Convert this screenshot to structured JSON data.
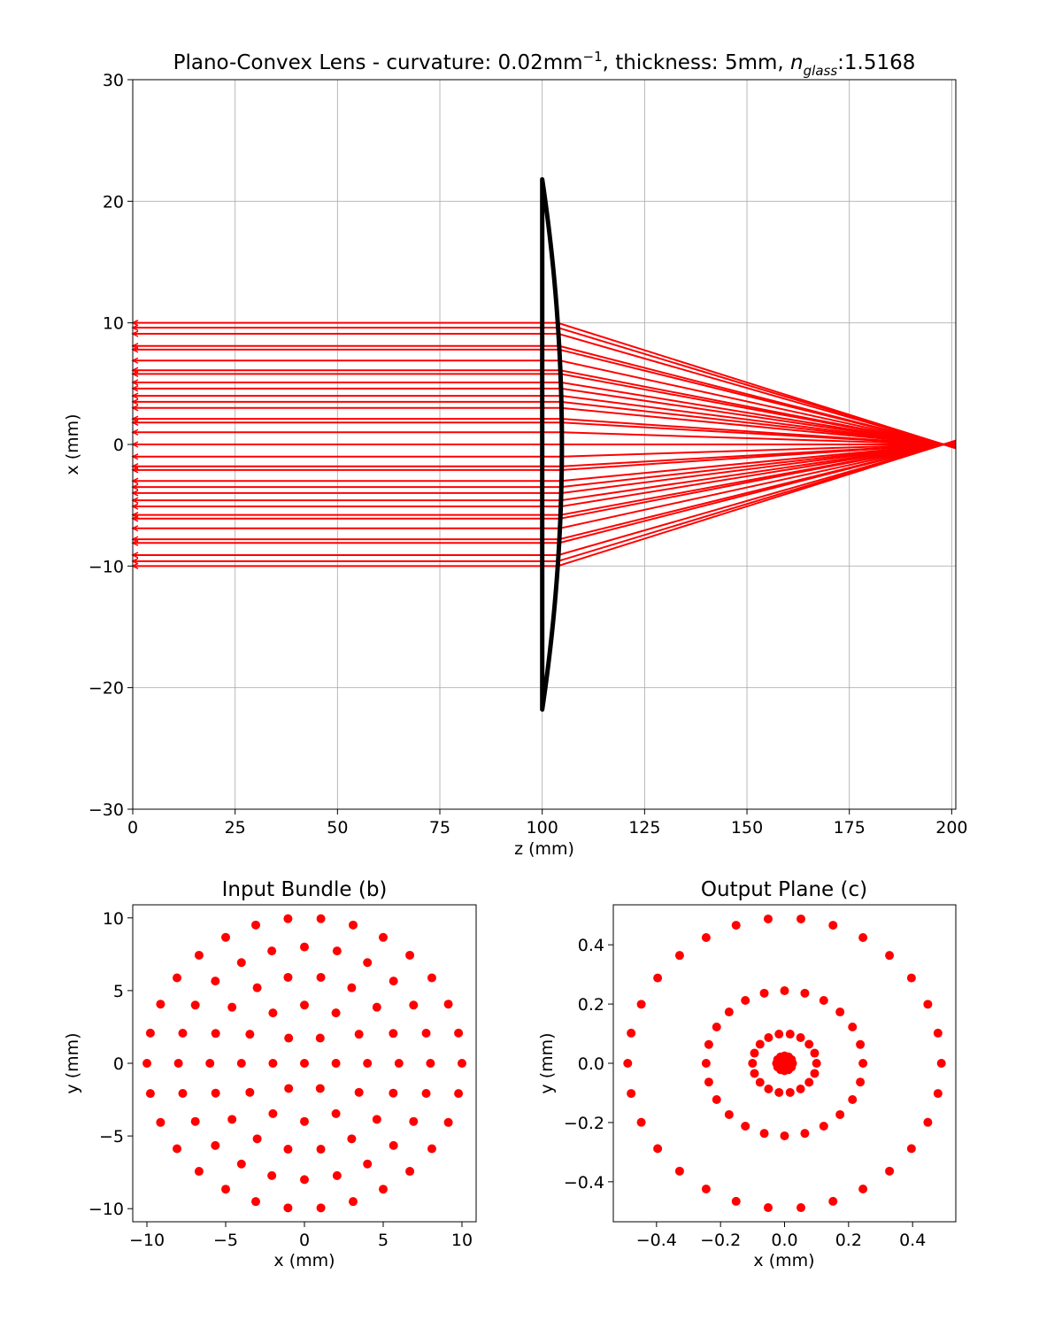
{
  "chart_data": [
    {
      "id": "ray-trace",
      "type": "line",
      "title_parts": {
        "prefix": "Plano-Convex Lens - curvature: 0.02mm",
        "sup": "−1",
        "middle": ", thickness: 5mm, ",
        "n": "n",
        "sub": "glass",
        "suffix": ":1.5168"
      },
      "xlabel": "z (mm)",
      "ylabel": "x (mm)",
      "xlim": [
        0,
        201
      ],
      "ylim": [
        -30,
        30
      ],
      "xticks": [
        0,
        25,
        50,
        75,
        100,
        125,
        150,
        175,
        200
      ],
      "yticks": [
        -30,
        -20,
        -10,
        0,
        10,
        20,
        30
      ],
      "xtick_labels": [
        "0",
        "25",
        "50",
        "75",
        "100",
        "125",
        "150",
        "175",
        "200"
      ],
      "ytick_labels": [
        "−30",
        "−20",
        "−10",
        "0",
        "10",
        "20",
        "30"
      ],
      "grid": true,
      "ray_color": "#ff0000",
      "lens_color": "#000000",
      "lens": {
        "flat_surface_z": 100,
        "vertex_z": 104.8,
        "aperture_half_height": 21.8
      },
      "ray_heights": [
        10,
        9.6,
        9.1,
        8.1,
        7.8,
        6.9,
        6.1,
        5.8,
        5.1,
        4.6,
        4.0,
        3.5,
        3.0,
        2.1,
        1.8,
        1.0,
        0,
        -1.0,
        -1.8,
        -2.1,
        -3.0,
        -3.5,
        -4.0,
        -4.6,
        -5.1,
        -5.8,
        -6.1,
        -6.9,
        -7.8,
        -8.1,
        -9.1,
        -9.6,
        -10
      ],
      "output_z": 201,
      "focal_z": 198
    },
    {
      "id": "input-bundle",
      "type": "scatter",
      "title": "Input Bundle (b)",
      "xlabel": "x (mm)",
      "ylabel": "y (mm)",
      "xlim": [
        -10.9,
        10.9
      ],
      "ylim": [
        -10.9,
        10.9
      ],
      "xticks": [
        -10,
        -5,
        0,
        5,
        10
      ],
      "yticks": [
        -10,
        -5,
        0,
        5,
        10
      ],
      "xtick_labels": [
        "−10",
        "−5",
        "0",
        "5",
        "10"
      ],
      "ytick_labels": [
        "−10",
        "−5",
        "0",
        "5",
        "10"
      ],
      "color": "#ff0000",
      "rings": [
        {
          "radius": 0,
          "count": 1,
          "offset_deg": 0
        },
        {
          "radius": 2,
          "count": 6,
          "offset_deg": 0
        },
        {
          "radius": 4,
          "count": 12,
          "offset_deg": 0
        },
        {
          "radius": 6,
          "count": 18,
          "offset_deg": 0
        },
        {
          "radius": 8,
          "count": 24,
          "offset_deg": 0
        },
        {
          "radius": 10,
          "count": 30,
          "offset_deg": 0
        }
      ]
    },
    {
      "id": "output-plane",
      "type": "scatter",
      "title": "Output Plane (c)",
      "xlabel": "x (mm)",
      "ylabel": "y (mm)",
      "xlim": [
        -0.535,
        0.535
      ],
      "ylim": [
        -0.535,
        0.535
      ],
      "xticks": [
        -0.4,
        -0.2,
        0.0,
        0.2,
        0.4
      ],
      "yticks": [
        -0.4,
        -0.2,
        0.0,
        0.2,
        0.4
      ],
      "xtick_labels": [
        "−0.4",
        "−0.2",
        "0.0",
        "0.2",
        "0.4"
      ],
      "ytick_labels": [
        "−0.4",
        "−0.2",
        "0.0",
        "0.2",
        "0.4"
      ],
      "color": "#ff0000",
      "rings": [
        {
          "radius": 0,
          "count": 1,
          "offset_deg": 0
        },
        {
          "radius": 0.012,
          "count": 6,
          "offset_deg": 0
        },
        {
          "radius": 0.025,
          "count": 12,
          "offset_deg": 0
        },
        {
          "radius": 0.1,
          "count": 18,
          "offset_deg": 0
        },
        {
          "radius": 0.245,
          "count": 24,
          "offset_deg": 0
        },
        {
          "radius": 0.49,
          "count": 30,
          "offset_deg": 0
        }
      ]
    }
  ]
}
